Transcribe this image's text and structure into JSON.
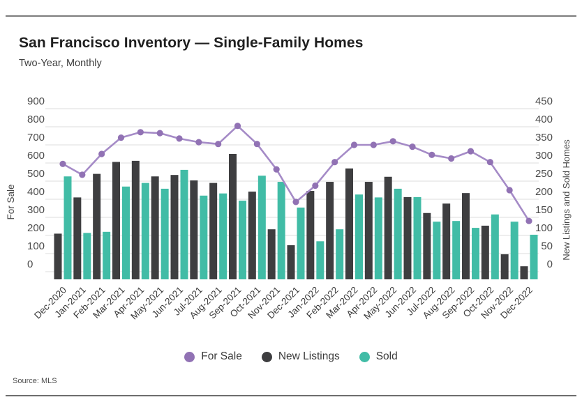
{
  "header": {
    "title": "San Francisco Inventory — Single-Family Homes",
    "subtitle": "Two-Year, Monthly"
  },
  "footer": {
    "source": "Source: MLS"
  },
  "legend": [
    {
      "label": "For Sale",
      "color": "#9172b4"
    },
    {
      "label": "New Listings",
      "color": "#3e3e40"
    },
    {
      "label": "Sold",
      "color": "#41bca6"
    }
  ],
  "colors": {
    "for_sale_line": "#a58bc7",
    "for_sale_marker": "#9172b4",
    "new_listings_bar": "#3e3e40",
    "sold_bar": "#41bca6",
    "gridline": "#dedede",
    "tick_text": "#4c4c4c",
    "axis_title_text": "#474747"
  },
  "chart_data": {
    "type": "line+bar",
    "title": "San Francisco Inventory — Single-Family Homes",
    "subtitle": "Two-Year, Monthly",
    "grid": true,
    "legend_position": "bottom",
    "categories": [
      "Dec-2020",
      "Jan-2021",
      "Feb-2021",
      "Mar-2021",
      "Apr-2021",
      "May-2021",
      "Jun-2021",
      "Jul-2021",
      "Aug-2021",
      "Sep-2021",
      "Oct-2021",
      "Nov-2021",
      "Dec-2021",
      "Jan-2022",
      "Feb-2022",
      "Mar-2022",
      "Apr-2022",
      "May-2022",
      "Jun-2022",
      "Jul-2022",
      "Aug-2022",
      "Sep-2022",
      "Oct-2022",
      "Nov-2022",
      "Dec-2022"
    ],
    "left_axis": {
      "title": "For Sale",
      "min": 0,
      "max": 900,
      "step": 100
    },
    "right_axis": {
      "title": "New Listings and Sold Homes",
      "min": 0,
      "max": 450,
      "step": 50
    },
    "series": [
      {
        "name": "For Sale",
        "type": "line",
        "axis": "left",
        "values": [
          595,
          535,
          650,
          740,
          770,
          765,
          735,
          715,
          705,
          805,
          705,
          565,
          385,
          475,
          605,
          700,
          700,
          720,
          690,
          645,
          625,
          665,
          605,
          450,
          280
        ]
      },
      {
        "name": "New Listings",
        "type": "bar",
        "axis": "right",
        "values": [
          105,
          205,
          270,
          303,
          306,
          263,
          267,
          252,
          245,
          325,
          221,
          117,
          73,
          223,
          248,
          285,
          248,
          262,
          206,
          162,
          188,
          217,
          127,
          48,
          15
        ]
      },
      {
        "name": "Sold",
        "type": "bar",
        "axis": "right",
        "values": [
          263,
          107,
          110,
          235,
          245,
          229,
          281,
          210,
          216,
          196,
          265,
          248,
          177,
          84,
          117,
          213,
          205,
          229,
          206,
          138,
          140,
          121,
          158,
          138,
          102
        ]
      }
    ]
  }
}
